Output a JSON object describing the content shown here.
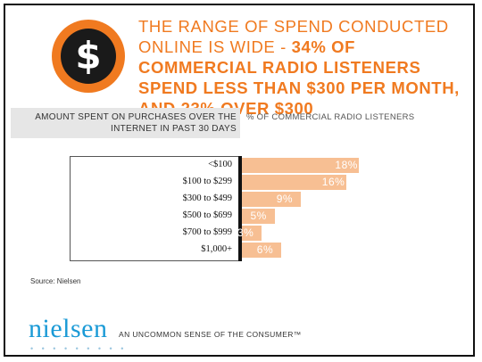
{
  "headline": {
    "light": "THE RANGE OF SPEND CONDUCTED ONLINE IS WIDE - ",
    "bold": "34% OF COMMERCIAL RADIO LISTENERS SPEND LESS THAN $300 PER MONTH, AND 23% OVER $300"
  },
  "badge_symbol": "$",
  "question": "AMOUNT SPENT ON PURCHASES OVER THE INTERNET IN PAST 30 DAYS",
  "value_axis_label": "% OF COMMERCIAL RADIO LISTENERS",
  "chart_data": {
    "type": "bar",
    "orientation": "horizontal",
    "categories": [
      "<$100",
      "$100 to $299",
      "$300 to $499",
      "$500 to $699",
      "$700 to $999",
      "$1,000+"
    ],
    "values": [
      18,
      16,
      9,
      5,
      3,
      6
    ],
    "value_labels": [
      "18%",
      "16%",
      "9%",
      "5%",
      "3%",
      "6%"
    ],
    "unit": "%",
    "xlim": [
      0,
      20
    ],
    "bar_color": "#f7bf93",
    "grid": false
  },
  "source": "Source: Nielsen",
  "logo": {
    "text": "nielsen",
    "dots": "• • • • • • • • •"
  },
  "tagline": "AN UNCOMMON SENSE OF THE CONSUMER™",
  "colors": {
    "accent": "#f07a20",
    "bar": "#f7bf93",
    "logo": "#1a9ad6"
  }
}
